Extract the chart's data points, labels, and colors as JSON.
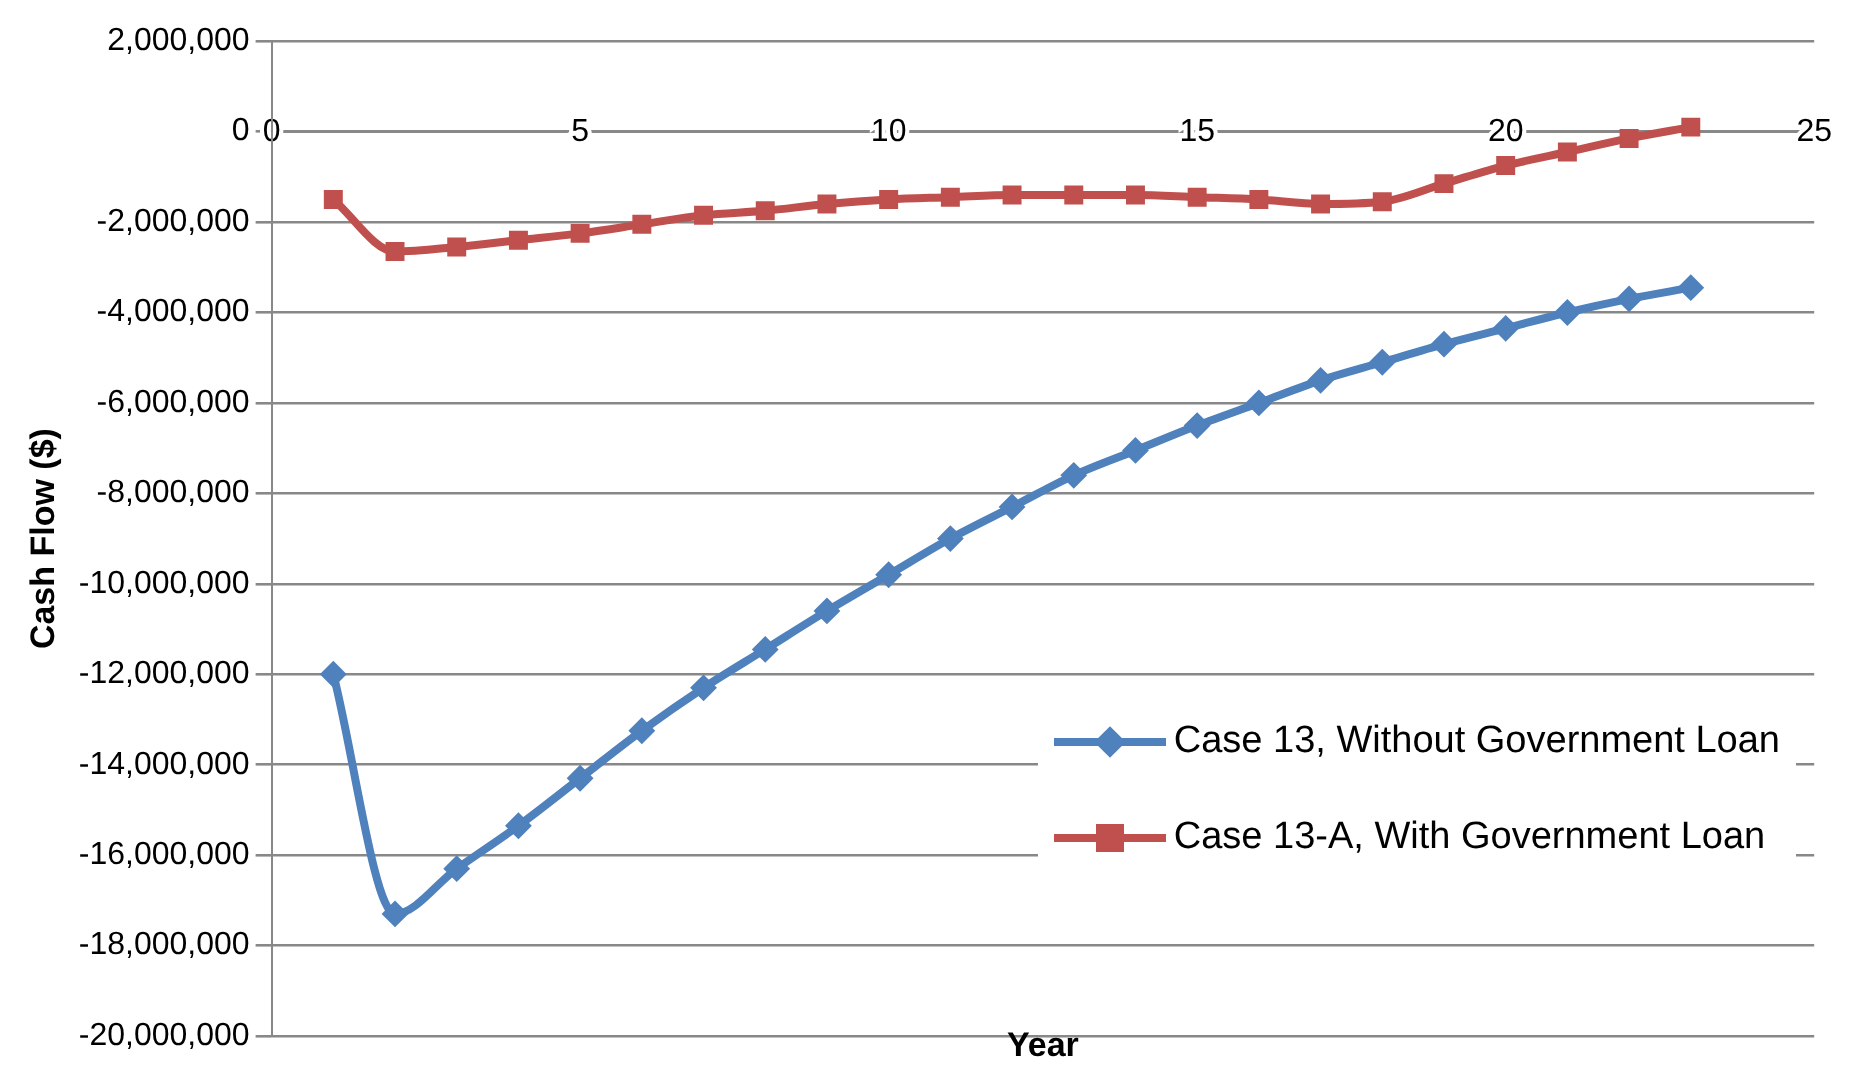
{
  "chart_data": {
    "type": "line",
    "xlabel": "Year",
    "ylabel": "Cash Flow ($)",
    "x": [
      1,
      2,
      3,
      4,
      5,
      6,
      7,
      8,
      9,
      10,
      11,
      12,
      13,
      14,
      15,
      16,
      17,
      18,
      19,
      20,
      21,
      22,
      23
    ],
    "series": [
      {
        "name": "Case 13, Without Government Loan",
        "color": "#4f81bd",
        "marker": "diamond",
        "values": [
          -12000000,
          -17300000,
          -16300000,
          -15350000,
          -14300000,
          -13250000,
          -12300000,
          -11450000,
          -10600000,
          -9800000,
          -9000000,
          -8300000,
          -7600000,
          -7050000,
          -6500000,
          -6000000,
          -5500000,
          -5100000,
          -4700000,
          -4350000,
          -4000000,
          -3700000,
          -3450000
        ]
      },
      {
        "name": "Case 13-A, With Government Loan",
        "color": "#c0504d",
        "marker": "square",
        "values": [
          -1500000,
          -2650000,
          -2550000,
          -2400000,
          -2250000,
          -2050000,
          -1850000,
          -1750000,
          -1600000,
          -1500000,
          -1450000,
          -1400000,
          -1400000,
          -1400000,
          -1450000,
          -1500000,
          -1600000,
          -1550000,
          -1150000,
          -750000,
          -450000,
          -150000,
          100000
        ]
      }
    ],
    "xlim": [
      0,
      25
    ],
    "xticks": [
      0,
      5,
      10,
      15,
      20,
      25
    ],
    "ylim": [
      -20000000,
      2000000
    ],
    "yticks": [
      {
        "value": -20000000,
        "label": "-20,000,000"
      },
      {
        "value": -18000000,
        "label": "-18,000,000"
      },
      {
        "value": -16000000,
        "label": "-16,000,000"
      },
      {
        "value": -14000000,
        "label": "-14,000,000"
      },
      {
        "value": -12000000,
        "label": "-12,000,000"
      },
      {
        "value": -10000000,
        "label": "-10,000,000"
      },
      {
        "value": -8000000,
        "label": "-8,000,000"
      },
      {
        "value": -6000000,
        "label": "-6,000,000"
      },
      {
        "value": -4000000,
        "label": "-4,000,000"
      },
      {
        "value": -2000000,
        "label": "-2,000,000"
      },
      0,
      {
        "value": 2000000,
        "label": "2,000,000"
      }
    ],
    "grid": "y",
    "legend": "bottom right",
    "line_style": "solid"
  }
}
